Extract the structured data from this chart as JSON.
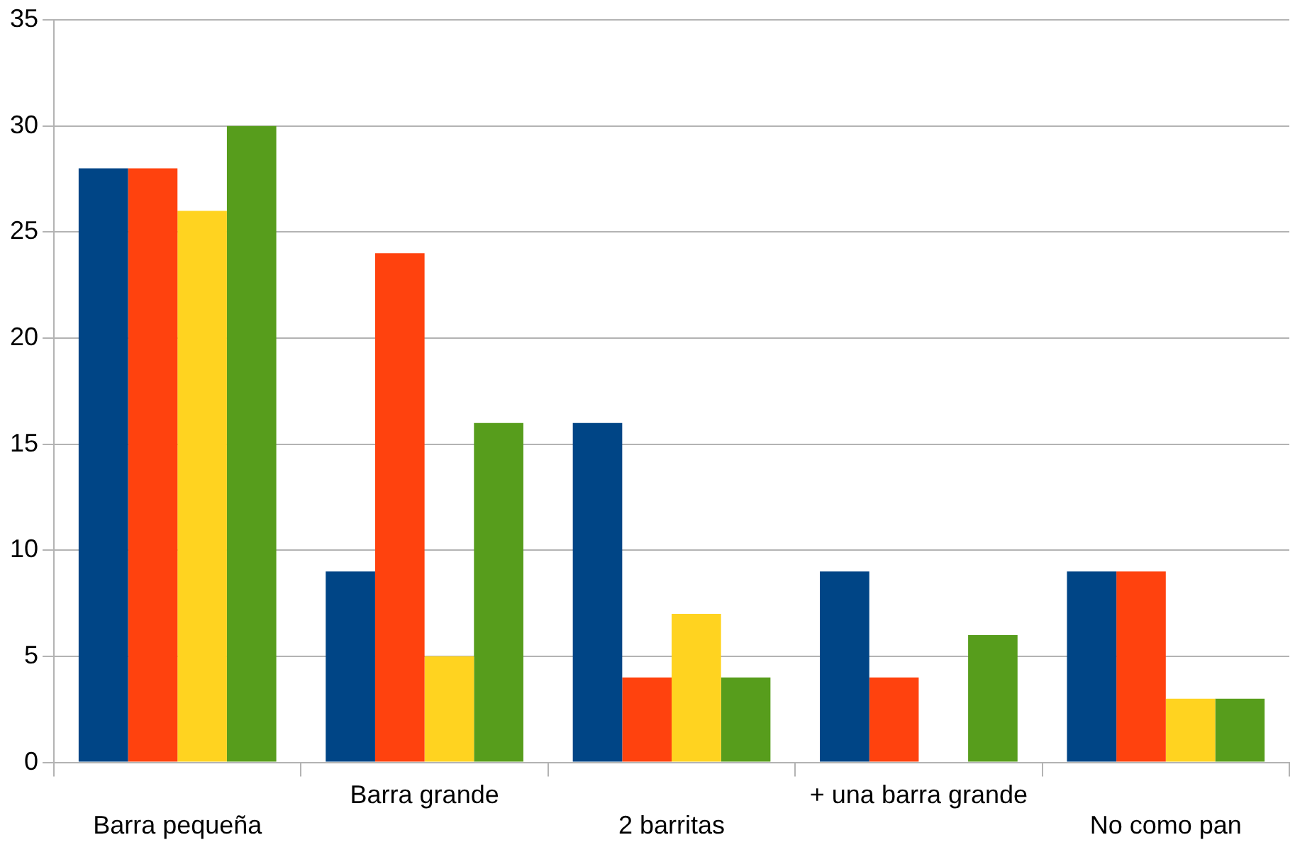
{
  "chart_data": {
    "type": "bar",
    "categories": [
      "Barra pequeña",
      "Barra grande",
      "2 barritas",
      "+ una barra grande",
      "No como pan"
    ],
    "series": [
      {
        "color": "#004586",
        "values": [
          28,
          9,
          16,
          9,
          9
        ]
      },
      {
        "color": "#ff420e",
        "values": [
          28,
          24,
          4,
          4,
          9
        ]
      },
      {
        "color": "#ffd320",
        "values": [
          26,
          5,
          7,
          0,
          3
        ]
      },
      {
        "color": "#579d1c",
        "values": [
          30,
          16,
          4,
          6,
          3
        ]
      }
    ],
    "ylim": [
      0,
      35
    ],
    "yticks": [
      0,
      5,
      10,
      15,
      20,
      25,
      30,
      35
    ],
    "grid": "y",
    "legend": false
  }
}
